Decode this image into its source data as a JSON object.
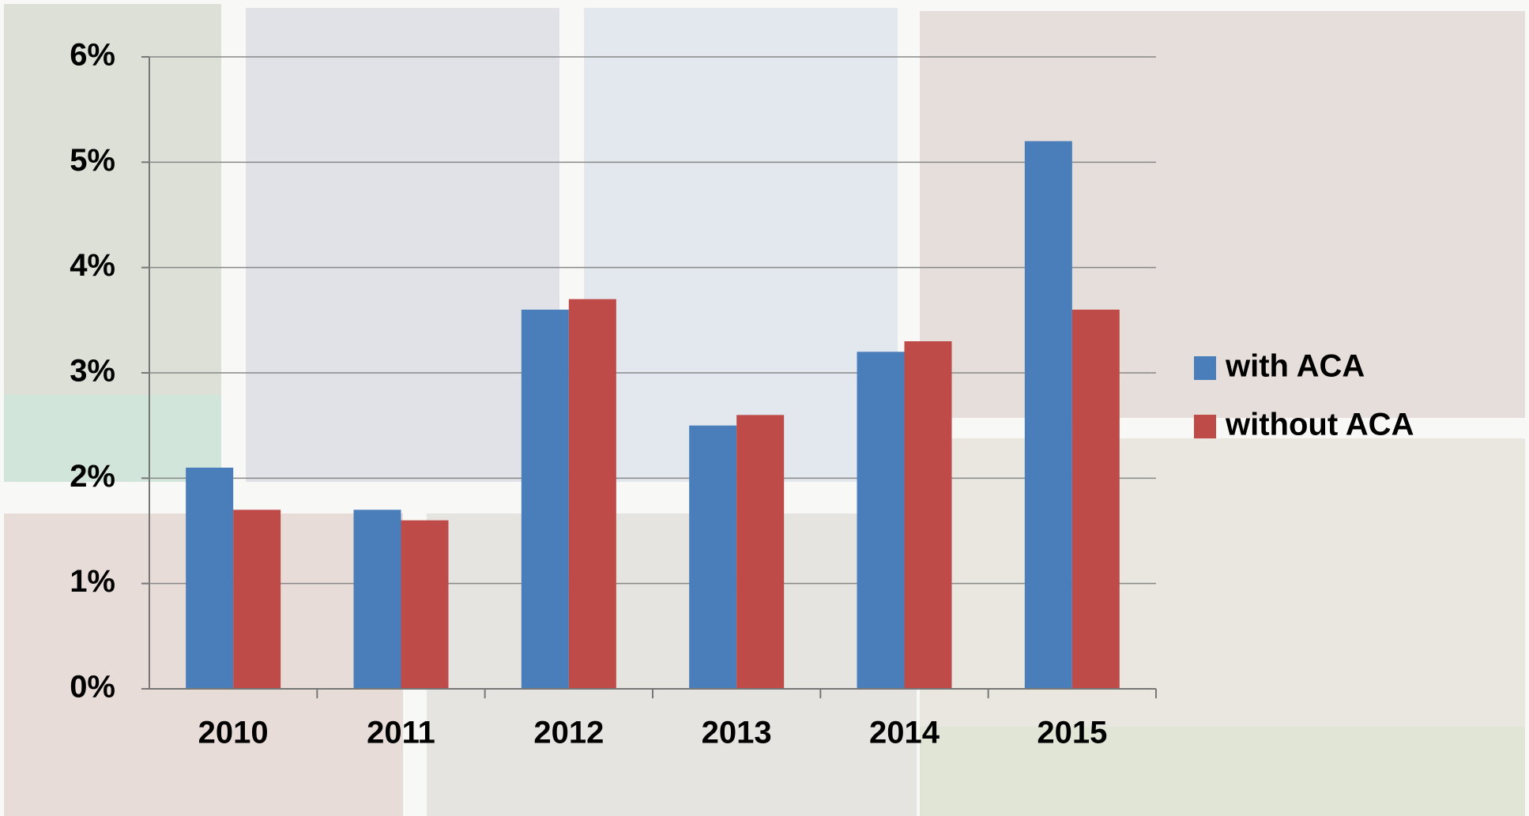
{
  "chart_data": {
    "type": "bar",
    "categories": [
      "2010",
      "2011",
      "2012",
      "2013",
      "2014",
      "2015"
    ],
    "series": [
      {
        "name": "with ACA",
        "color": "#4a7ebb",
        "values": [
          2.1,
          1.7,
          3.6,
          2.5,
          3.2,
          5.2
        ]
      },
      {
        "name": "without ACA",
        "color": "#be4b48",
        "values": [
          1.7,
          1.6,
          3.7,
          2.6,
          3.3,
          3.6
        ]
      }
    ],
    "ylim": [
      0,
      6
    ],
    "yticks": [
      {
        "value": 0,
        "label": "0%"
      },
      {
        "value": 1,
        "label": "1%"
      },
      {
        "value": 2,
        "label": "2%"
      },
      {
        "value": 3,
        "label": "3%"
      },
      {
        "value": 4,
        "label": "4%"
      },
      {
        "value": 5,
        "label": "5%"
      },
      {
        "value": 6,
        "label": "6%"
      }
    ],
    "grid": true,
    "legend": "right"
  }
}
